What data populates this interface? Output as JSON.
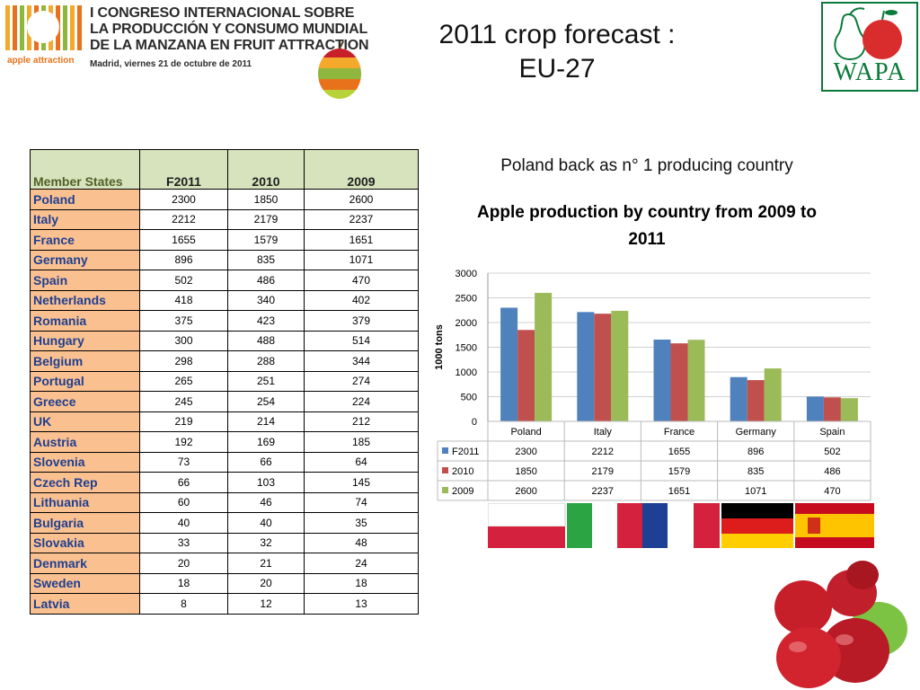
{
  "header": {
    "logo_caption": "apple attraction",
    "congress_lines": [
      "I CONGRESO INTERNACIONAL SOBRE",
      "LA PRODUCCIÓN Y CONSUMO MUNDIAL",
      "DE LA MANZANA EN FRUIT ATTRACTION"
    ],
    "congress_date": "Madrid, viernes 21 de octubre de 2011",
    "title_line1": "2011 crop forecast :",
    "title_line2": "EU-27",
    "wapa_text": "WAPA"
  },
  "table": {
    "headers": [
      "Member States",
      "F2011",
      "2010",
      "2009"
    ],
    "rows": [
      {
        "country": "Poland",
        "f2011": "2300",
        "y2010": "1850",
        "y2009": "2600"
      },
      {
        "country": "Italy",
        "f2011": "2212",
        "y2010": "2179",
        "y2009": "2237"
      },
      {
        "country": "France",
        "f2011": "1655",
        "y2010": "1579",
        "y2009": "1651"
      },
      {
        "country": "Germany",
        "f2011": "896",
        "y2010": "835",
        "y2009": "1071"
      },
      {
        "country": "Spain",
        "f2011": "502",
        "y2010": "486",
        "y2009": "470"
      },
      {
        "country": "Netherlands",
        "f2011": "418",
        "y2010": "340",
        "y2009": "402"
      },
      {
        "country": "Romania",
        "f2011": "375",
        "y2010": "423",
        "y2009": "379"
      },
      {
        "country": "Hungary",
        "f2011": "300",
        "y2010": "488",
        "y2009": "514"
      },
      {
        "country": "Belgium",
        "f2011": "298",
        "y2010": "288",
        "y2009": "344"
      },
      {
        "country": "Portugal",
        "f2011": "265",
        "y2010": "251",
        "y2009": "274"
      },
      {
        "country": "Greece",
        "f2011": "245",
        "y2010": "254",
        "y2009": "224"
      },
      {
        "country": "UK",
        "f2011": "219",
        "y2010": "214",
        "y2009": "212"
      },
      {
        "country": "Austria",
        "f2011": "192",
        "y2010": "169",
        "y2009": "185"
      },
      {
        "country": "Slovenia",
        "f2011": "73",
        "y2010": "66",
        "y2009": "64"
      },
      {
        "country": "Czech Rep",
        "f2011": "66",
        "y2010": "103",
        "y2009": "145"
      },
      {
        "country": "Lithuania",
        "f2011": "60",
        "y2010": "46",
        "y2009": "74"
      },
      {
        "country": "Bulgaria",
        "f2011": "40",
        "y2010": "40",
        "y2009": "35"
      },
      {
        "country": "Slovakia",
        "f2011": "33",
        "y2010": "32",
        "y2009": "48"
      },
      {
        "country": "Denmark",
        "f2011": "20",
        "y2010": "21",
        "y2009": "24"
      },
      {
        "country": "Sweden",
        "f2011": "18",
        "y2010": "20",
        "y2009": "18"
      },
      {
        "country": "Latvia",
        "f2011": "8",
        "y2010": "12",
        "y2009": "13"
      }
    ]
  },
  "chart_subtitle": "Poland back as n° 1 producing country",
  "chart_data": {
    "type": "bar",
    "title": "Apple production by country from 2009 to 2011",
    "ylabel": "1000 tons",
    "xlabel": "",
    "ylim": [
      0,
      3000
    ],
    "yticks": [
      0,
      500,
      1000,
      1500,
      2000,
      2500,
      3000
    ],
    "grid": true,
    "legend_placement": "data-table",
    "categories": [
      "Poland",
      "Italy",
      "France",
      "Germany",
      "Spain"
    ],
    "series": [
      {
        "name": "F2011",
        "color": "#4f81bd",
        "values": [
          2300,
          2212,
          1655,
          896,
          502
        ]
      },
      {
        "name": "2010",
        "color": "#c0504d",
        "values": [
          1850,
          2179,
          1579,
          835,
          486
        ]
      },
      {
        "name": "2009",
        "color": "#9bbb59",
        "values": [
          2600,
          2237,
          1651,
          1071,
          470
        ]
      }
    ]
  },
  "flags": [
    "poland-flag",
    "italy-flag",
    "france-flag",
    "germany-flag",
    "spain-flag"
  ],
  "colors": {
    "table_header_bg": "#d6e3bc",
    "table_country_bg": "#fac090",
    "table_country_text": "#1f3f8f",
    "wapa_green": "#0a7a3a"
  }
}
